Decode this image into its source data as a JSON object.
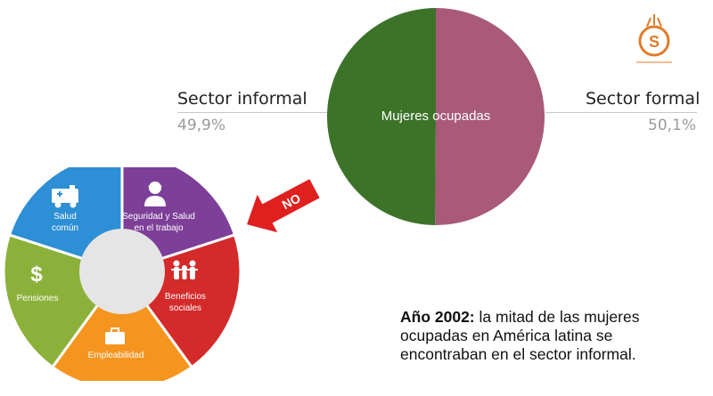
{
  "chart_data": {
    "type": "pie",
    "center_label": "Mujeres ocupadas",
    "slices": [
      {
        "label": "Sector informal",
        "value": 49.9,
        "display": "49,9%",
        "color": "#3c7329"
      },
      {
        "label": "Sector formal",
        "value": 50.1,
        "display": "50,1%",
        "color": "#a85a78"
      }
    ]
  },
  "wheel": {
    "center_color": "#e5e5e5",
    "segments": [
      {
        "label": "Seguridad y Salud\nen el trabajo",
        "color": "#7d3f98",
        "icon": "health-worker-icon"
      },
      {
        "label": "Beneficios\nsociales",
        "color": "#d42a2a",
        "icon": "family-icon"
      },
      {
        "label": "Empleabilidad",
        "color": "#f5951f",
        "icon": "briefcase-icon"
      },
      {
        "label": "Pensiones",
        "color": "#8cb13a",
        "icon": "dollar-icon"
      },
      {
        "label": "Salud\ncomún",
        "color": "#2d8fd5",
        "icon": "ambulance-icon"
      }
    ]
  },
  "arrow": {
    "label": "NO",
    "color": "#e01f1f"
  },
  "caption": {
    "bold": "Año 2002:",
    "text": " la mitad de las mujeres ocupadas en América latina se encontraban en el sector informal."
  },
  "logo": {
    "color": "#e07c2a"
  }
}
